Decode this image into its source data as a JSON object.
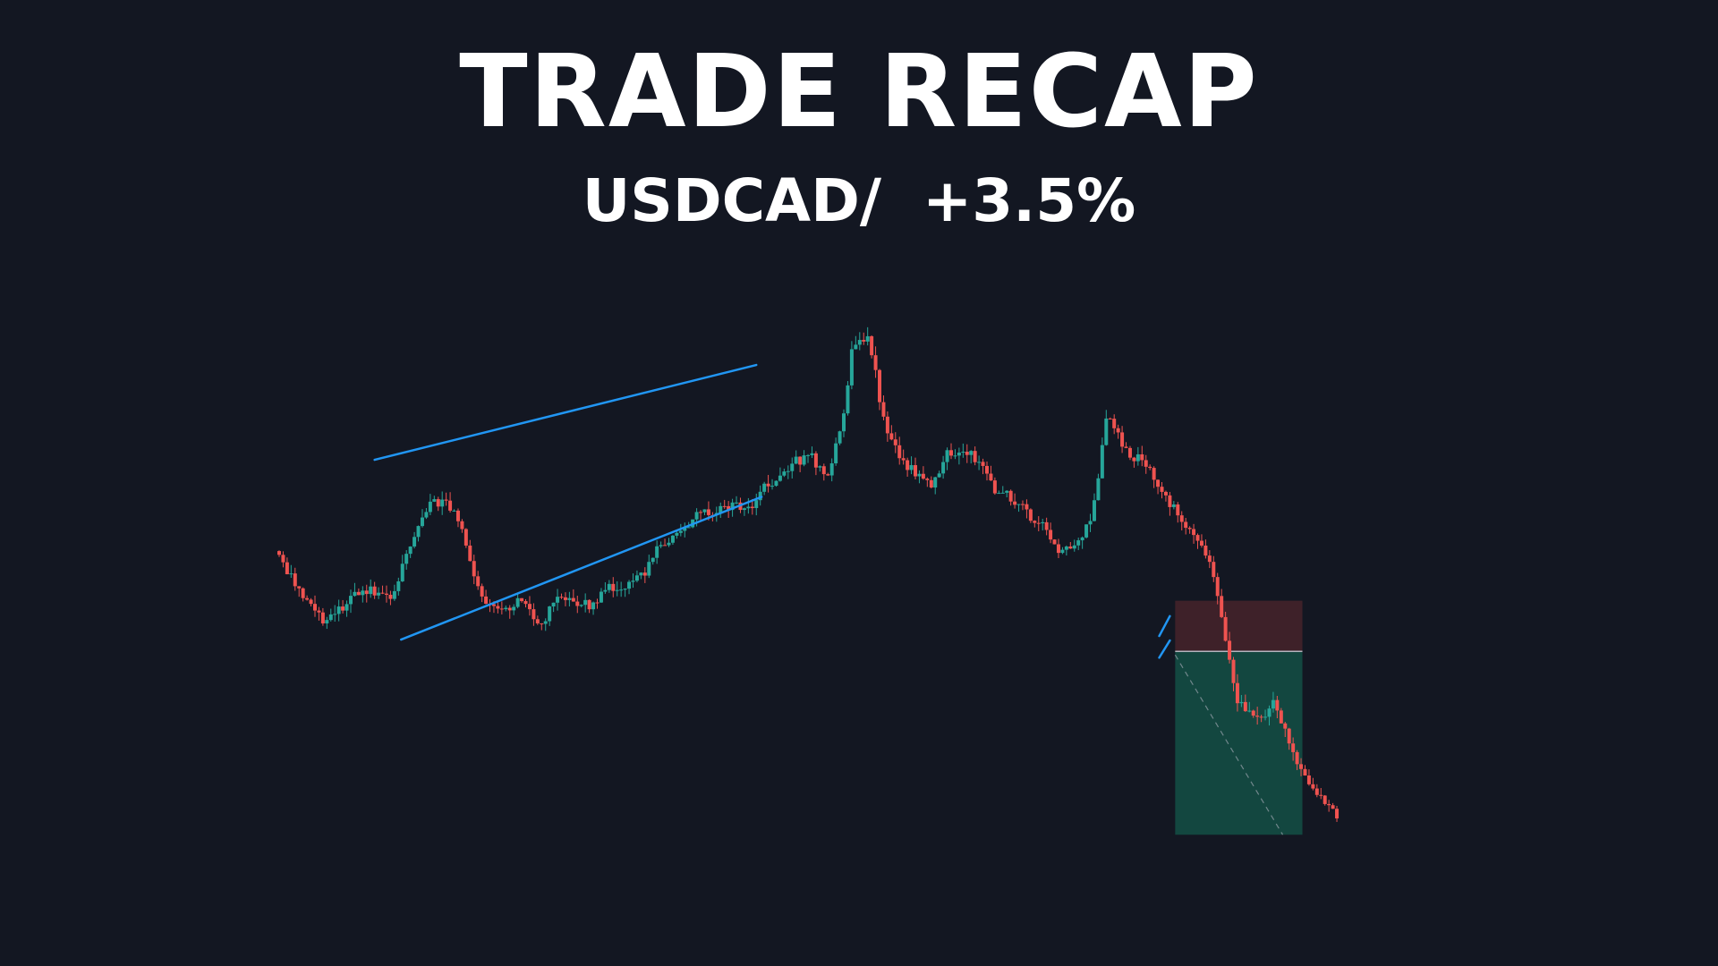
{
  "header": {
    "title": "TRADE RECAP",
    "subtitle": "USDCAD/  +3.5%"
  },
  "colors": {
    "background": "#131722",
    "bullish": "#26a69a",
    "bearish": "#ef5350",
    "trendline": "#2196f3",
    "stop_zone": "#3e2129",
    "target_zone": "#134740",
    "entry_line": "#b2b5be"
  },
  "chart_data": {
    "type": "candlestick",
    "title": "",
    "xlabel": "",
    "ylabel": "",
    "ylim": [
      0,
      1000
    ],
    "x_range": [
      0,
      200
    ],
    "grid": false,
    "legend": "none",
    "anchors": [
      [
        0,
        390
      ],
      [
        5,
        345
      ],
      [
        9,
        310
      ],
      [
        15,
        340
      ],
      [
        18,
        345
      ],
      [
        22,
        340
      ],
      [
        27,
        420
      ],
      [
        30,
        445
      ],
      [
        33,
        440
      ],
      [
        36,
        400
      ],
      [
        39,
        335
      ],
      [
        43,
        320
      ],
      [
        46,
        340
      ],
      [
        50,
        300
      ],
      [
        53,
        345
      ],
      [
        56,
        330
      ],
      [
        60,
        330
      ],
      [
        63,
        350
      ],
      [
        66,
        350
      ],
      [
        70,
        370
      ],
      [
        73,
        400
      ],
      [
        76,
        410
      ],
      [
        80,
        430
      ],
      [
        83,
        435
      ],
      [
        86,
        440
      ],
      [
        90,
        440
      ],
      [
        93,
        465
      ],
      [
        96,
        475
      ],
      [
        98,
        490
      ],
      [
        101,
        495
      ],
      [
        104,
        470
      ],
      [
        107,
        530
      ],
      [
        109,
        620
      ],
      [
        112,
        630
      ],
      [
        115,
        525
      ],
      [
        118,
        490
      ],
      [
        121,
        475
      ],
      [
        124,
        460
      ],
      [
        127,
        500
      ],
      [
        130,
        500
      ],
      [
        133,
        490
      ],
      [
        136,
        455
      ],
      [
        139,
        450
      ],
      [
        142,
        430
      ],
      [
        145,
        420
      ],
      [
        148,
        390
      ],
      [
        151,
        395
      ],
      [
        154,
        430
      ],
      [
        157,
        540
      ],
      [
        160,
        505
      ],
      [
        163,
        490
      ],
      [
        166,
        470
      ],
      [
        169,
        440
      ],
      [
        172,
        420
      ],
      [
        175,
        400
      ],
      [
        178,
        340
      ],
      [
        181,
        230
      ],
      [
        183,
        210
      ],
      [
        186,
        205
      ],
      [
        188,
        225
      ],
      [
        192,
        165
      ],
      [
        195,
        130
      ],
      [
        198,
        110
      ],
      [
        200,
        100
      ]
    ],
    "seed": 4271,
    "trendlines": [
      {
        "name": "channel-upper",
        "points": [
          [
            18,
            491
          ],
          [
            90,
            596
          ]
        ]
      },
      {
        "name": "channel-lower",
        "points": [
          [
            23,
            292
          ],
          [
            91,
            450
          ]
        ]
      },
      {
        "name": "breakdown-flag",
        "points": [
          [
            166,
            296
          ],
          [
            168,
            318
          ]
        ]
      },
      {
        "name": "breakdown-flag-lower",
        "points": [
          [
            166,
            272
          ],
          [
            168,
            291
          ]
        ]
      }
    ],
    "position": {
      "type": "short",
      "x_start": 169,
      "x_end": 193,
      "entry": 279,
      "stop": 335,
      "target": 76
    }
  }
}
